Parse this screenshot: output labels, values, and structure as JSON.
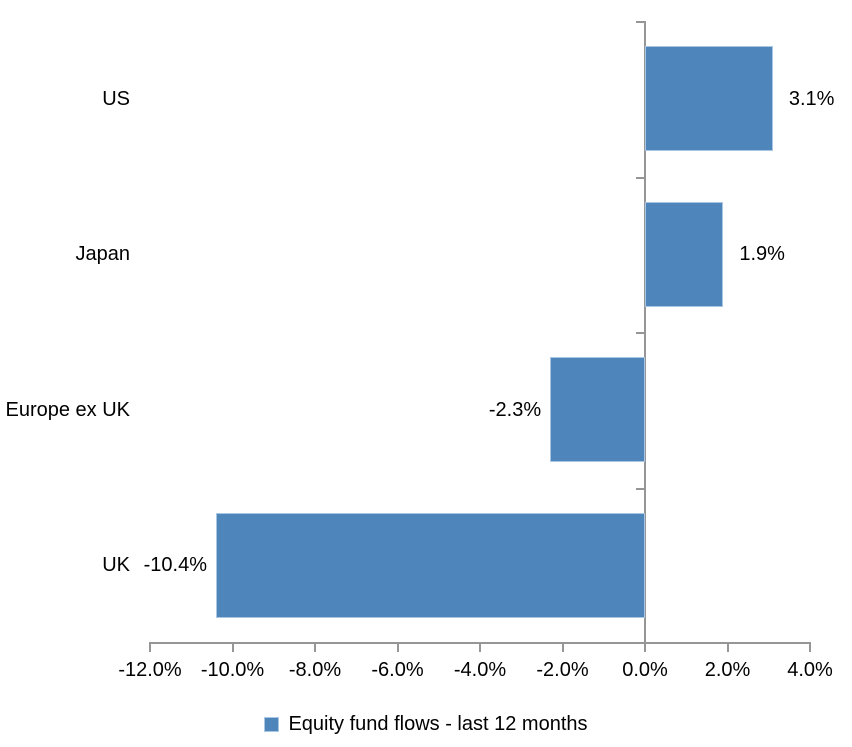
{
  "chart_data": {
    "type": "bar",
    "orientation": "horizontal",
    "title": "",
    "categories": [
      "US",
      "Japan",
      "Europe ex UK",
      "UK"
    ],
    "values": [
      3.1,
      1.9,
      -2.3,
      -10.4
    ],
    "data_labels": [
      "3.1%",
      "1.9%",
      "-2.3%",
      "-10.4%"
    ],
    "series_name": "Equity fund flows - last 12 months",
    "xlim": [
      -12,
      4
    ],
    "x_tick_step": 2,
    "x_tick_labels": [
      "-12.0%",
      "-10.0%",
      "-8.0%",
      "-6.0%",
      "-4.0%",
      "-2.0%",
      "0.0%",
      "2.0%",
      "4.0%"
    ],
    "grid": false,
    "legend_position": "bottom",
    "colors": {
      "bar": "#4e86bc",
      "bar_border": "#a9c6e3",
      "axis": "#969696",
      "text": "#000000"
    }
  },
  "legend": {
    "label": "Equity fund flows - last 12 months"
  }
}
